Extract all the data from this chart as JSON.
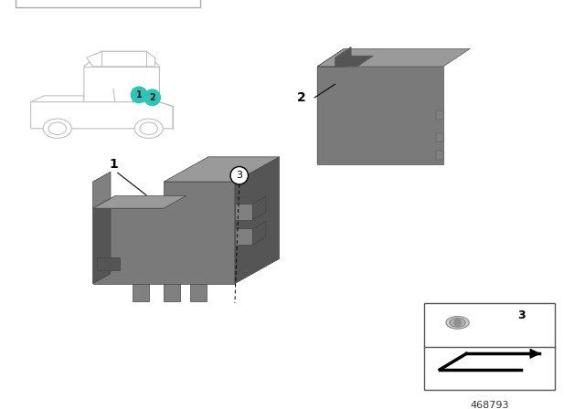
{
  "bg_color": "#ffffff",
  "part_color_front": "#7a7a7a",
  "part_color_top": "#9a9a9a",
  "part_color_right": "#686868",
  "part_color_dark": "#555555",
  "part_color_med": "#808080",
  "teal_color": "#2ec4b6",
  "car_line_color": "#c0c0c0",
  "border_color": "#888888",
  "diagram_number": "468793",
  "label_font_size": 10,
  "number_font_size": 9,
  "diagram_num_font_size": 8
}
